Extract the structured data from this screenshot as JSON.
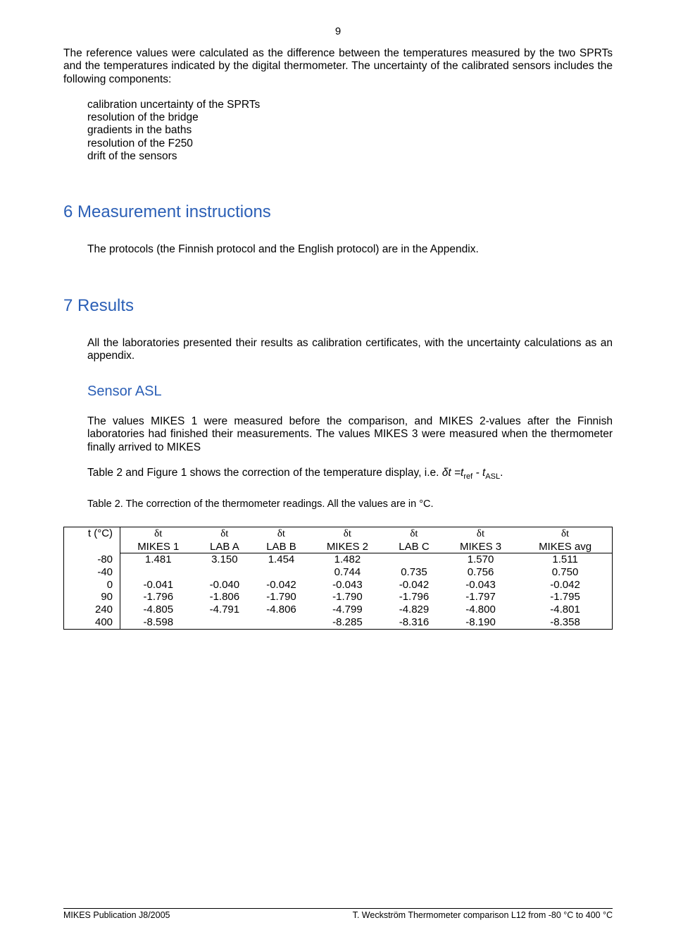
{
  "page_number": "9",
  "para1": "The reference values were calculated as the difference between the temperatures measured by the two SPRTs and the temperatures indicated by the digital thermometer. The uncertainty of the calibrated sensors includes the following components:",
  "components": [
    "calibration uncertainty of the SPRTs",
    "resolution of the bridge",
    "gradients in the baths",
    "resolution of the F250",
    "drift of the sensors"
  ],
  "section6_title": "6  Measurement instructions",
  "section6_body": "The protocols (the Finnish protocol and the English protocol) are in the Appendix.",
  "section7_title": "7  Results",
  "section7_body": "All the laboratories presented their results as calibration certificates, with the uncertainty calculations as an appendix.",
  "sensor_title": "Sensor ASL",
  "sensor_p1": "The values MIKES 1 were measured before the comparison, and MIKES 2-values after the Finnish laboratories had finished their measurements. The values MIKES 3 were measured when the thermometer finally arrived to MIKES",
  "sensor_p2_a": "Table 2 and Figure 1 shows the correction of the temperature display, i.e. ",
  "sensor_p2_eq_lhs": "δt =t",
  "sensor_p2_eq_sub1": "ref",
  "sensor_p2_eq_mid": " - t",
  "sensor_p2_eq_sub2": "ASL",
  "sensor_p2_end": ".",
  "table2_caption": "Table 2. The correction of the thermometer readings. All the values are in °C.",
  "table": {
    "head_tcol": "t (°C)",
    "delta_sym": "δt",
    "labels": [
      "MIKES 1",
      "LAB A",
      "LAB B",
      "MIKES 2",
      "LAB C",
      "MIKES 3",
      "MIKES avg"
    ],
    "rows": [
      {
        "t": "-80",
        "v": [
          "1.481",
          "3.150",
          "1.454",
          "1.482",
          "",
          "1.570",
          "1.511"
        ]
      },
      {
        "t": "-40",
        "v": [
          "",
          "",
          "",
          "0.744",
          "0.735",
          "0.756",
          "0.750"
        ]
      },
      {
        "t": "0",
        "v": [
          "-0.041",
          "-0.040",
          "-0.042",
          "-0.043",
          "-0.042",
          "-0.043",
          "-0.042"
        ]
      },
      {
        "t": "90",
        "v": [
          "-1.796",
          "-1.806",
          "-1.790",
          "-1.790",
          "-1.796",
          "-1.797",
          "-1.795"
        ]
      },
      {
        "t": "240",
        "v": [
          "-4.805",
          "-4.791",
          "-4.806",
          "-4.799",
          "-4.829",
          "-4.800",
          "-4.801"
        ]
      },
      {
        "t": "400",
        "v": [
          "-8.598",
          "",
          "",
          "-8.285",
          "-8.316",
          "-8.190",
          "-8.358"
        ]
      }
    ]
  },
  "footer_left": "MIKES Publication J8/2005",
  "footer_right": "T. Weckström Thermometer comparison L12 from -80 °C to 400 °C"
}
